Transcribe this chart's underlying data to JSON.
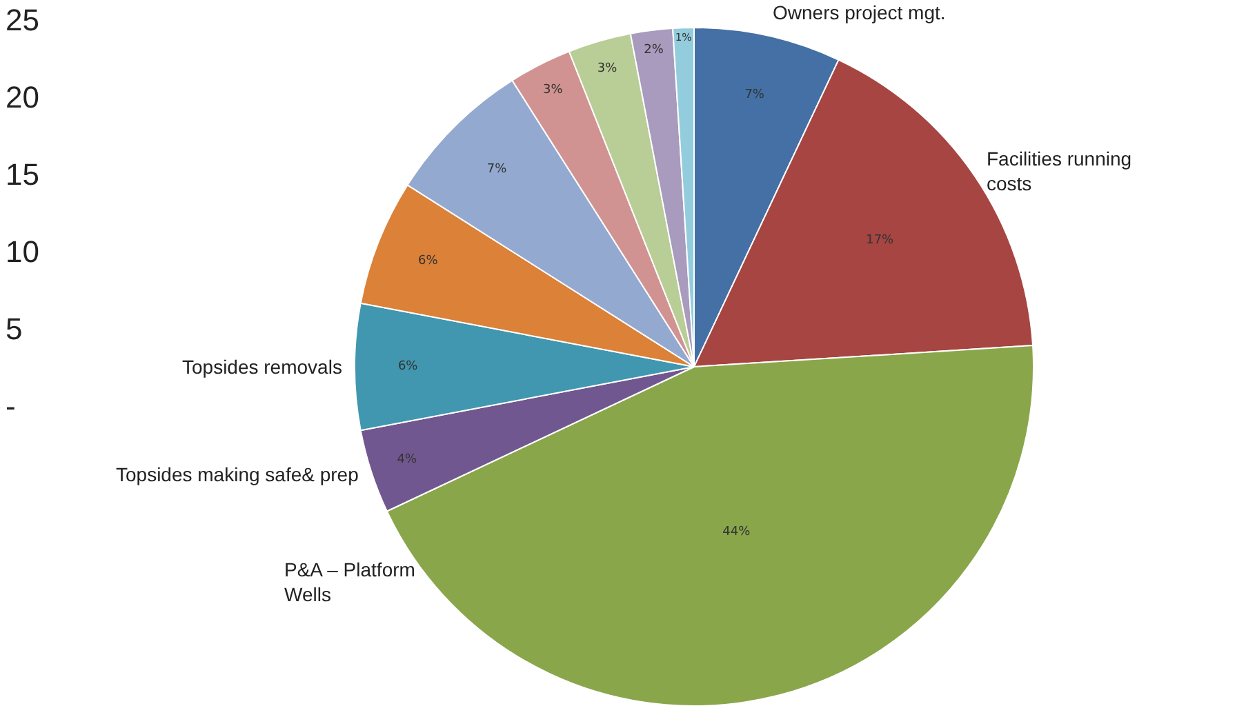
{
  "chart_data": {
    "type": "pie",
    "categories": [
      "Owners project mgt.",
      "Facilities running costs",
      "P&A – Platform Wells",
      "Topsides making safe& prep",
      "Topsides removals",
      null,
      null,
      null,
      null,
      null,
      null
    ],
    "values": [
      7,
      17,
      44,
      4,
      6,
      6,
      7,
      3,
      3,
      2,
      1
    ],
    "value_labels": [
      "7%",
      "17%",
      "44%",
      "4%",
      "6%",
      "6%",
      "7%",
      "3%",
      "3%",
      "2%",
      "1%"
    ],
    "colors": [
      "#4470a6",
      "#a64542",
      "#8aa64b",
      "#71578f",
      "#4197af",
      "#db8138",
      "#93a9d0",
      "#d19391",
      "#b9cd96",
      "#a89bbd",
      "#93cddd"
    ],
    "annotations": [
      "25",
      "20",
      "15",
      "10",
      "5",
      "-"
    ],
    "legend": false
  }
}
